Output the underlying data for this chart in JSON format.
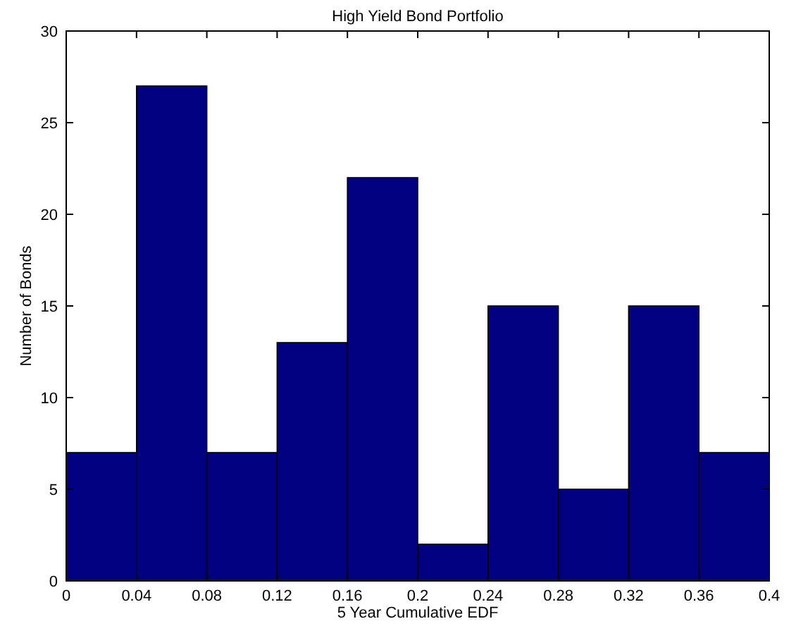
{
  "chart_data": {
    "type": "histogram",
    "title": "High Yield Bond Portfolio",
    "xlabel": "5 Year Cumulative EDF",
    "ylabel": "Number of Bonds",
    "bins": [
      0,
      0.04,
      0.08,
      0.12,
      0.16,
      0.2,
      0.24,
      0.28,
      0.32,
      0.36,
      0.4
    ],
    "values": [
      7,
      27,
      7,
      13,
      22,
      2,
      15,
      5,
      15,
      7
    ],
    "color": "#000080",
    "xlim": [
      0,
      0.4
    ],
    "xticks": [
      0,
      0.04,
      0.08,
      0.12,
      0.16,
      0.2,
      0.24,
      0.28,
      0.32,
      0.36,
      0.4
    ],
    "ylim": [
      0,
      30
    ],
    "yticks": [
      0,
      5,
      10,
      15,
      20,
      25,
      30
    ]
  }
}
